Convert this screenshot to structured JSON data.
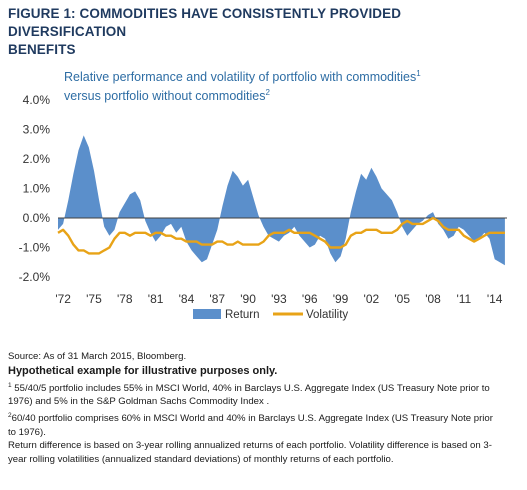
{
  "figure": {
    "title_line1": "FIGURE 1: COMMODITIES HAVE CONSISTENTLY PROVIDED DIVERSIFICATION",
    "title_line2": "BENEFITS",
    "subtitle_line1": "Relative performance and volatility of portfolio with commodities",
    "subtitle_sup1": "1",
    "subtitle_line2": "versus portfolio without commodities",
    "subtitle_sup2": "2"
  },
  "colors": {
    "return_fill": "#5b8fcb",
    "volatility_line": "#e8a317",
    "axis": "#404040",
    "title": "#1f3a5f",
    "subtitle": "#2e6da4"
  },
  "chart_data": {
    "type": "area",
    "title": "Relative performance and volatility of portfolio with commodities versus portfolio without commodities",
    "xlabel": "",
    "ylabel": "",
    "ylim": [
      -2.0,
      4.0
    ],
    "xlim": [
      1971.5,
      2015.2
    ],
    "grid": false,
    "legend_position": "bottom",
    "y_tick_labels": [
      "4.0%",
      "3.0%",
      "2.0%",
      "1.0%",
      "0.0%",
      "-1.0%",
      "-2.0%"
    ],
    "y_tick_values": [
      4,
      3,
      2,
      1,
      0,
      -1,
      -2
    ],
    "x_tick_labels": [
      "'72",
      "'75",
      "'78",
      "'81",
      "'84",
      "'87",
      "'90",
      "'93",
      "'96",
      "'99",
      "'02",
      "'05",
      "'08",
      "'11",
      "'14"
    ],
    "x_tick_values": [
      1972,
      1975,
      1978,
      1981,
      1984,
      1987,
      1990,
      1993,
      1996,
      1999,
      2002,
      2005,
      2008,
      2011,
      2014
    ],
    "series": [
      {
        "name": "Return",
        "type": "area",
        "x": [
          1971.5,
          1972,
          1972.5,
          1973,
          1973.5,
          1974,
          1974.5,
          1975,
          1975.5,
          1976,
          1976.5,
          1977,
          1977.5,
          1978,
          1978.5,
          1979,
          1979.5,
          1980,
          1980.5,
          1981,
          1981.5,
          1982,
          1982.5,
          1983,
          1983.5,
          1984,
          1984.5,
          1985,
          1985.5,
          1986,
          1986.5,
          1987,
          1987.5,
          1988,
          1988.5,
          1989,
          1989.5,
          1990,
          1990.5,
          1991,
          1991.5,
          1992,
          1992.5,
          1993,
          1993.5,
          1994,
          1994.5,
          1995,
          1995.5,
          1996,
          1996.5,
          1997,
          1997.5,
          1998,
          1998.5,
          1999,
          1999.5,
          2000,
          2000.5,
          2001,
          2001.5,
          2002,
          2002.5,
          2003,
          2003.5,
          2004,
          2004.5,
          2005,
          2005.5,
          2006,
          2006.5,
          2007,
          2007.5,
          2008,
          2008.5,
          2009,
          2009.5,
          2010,
          2010.5,
          2011,
          2011.5,
          2012,
          2012.5,
          2013,
          2013.5,
          2014,
          2014.5,
          2015
        ],
        "values": [
          -0.4,
          -0.2,
          0.6,
          1.5,
          2.3,
          2.8,
          2.4,
          1.6,
          0.6,
          -0.3,
          -0.6,
          -0.4,
          0.2,
          0.5,
          0.8,
          0.9,
          0.6,
          -0.1,
          -0.5,
          -0.8,
          -0.6,
          -0.3,
          -0.2,
          -0.5,
          -0.3,
          -0.8,
          -1.1,
          -1.3,
          -1.5,
          -1.4,
          -0.9,
          -0.4,
          0.4,
          1.1,
          1.6,
          1.4,
          1.1,
          1.3,
          0.7,
          0.1,
          -0.3,
          -0.6,
          -0.7,
          -0.8,
          -0.6,
          -0.5,
          -0.3,
          -0.6,
          -0.8,
          -1.0,
          -0.9,
          -0.6,
          -0.7,
          -1.2,
          -1.5,
          -1.3,
          -0.7,
          0.2,
          0.9,
          1.5,
          1.3,
          1.7,
          1.4,
          1.0,
          0.8,
          0.6,
          0.2,
          -0.3,
          -0.6,
          -0.4,
          -0.2,
          -0.1,
          0.1,
          0.2,
          -0.2,
          -0.4,
          -0.7,
          -0.6,
          -0.3,
          -0.4,
          -0.6,
          -0.8,
          -0.7,
          -0.5,
          -0.7,
          -1.4,
          -1.5,
          -1.6
        ]
      },
      {
        "name": "Volatility",
        "type": "line",
        "x": [
          1971.5,
          1972,
          1972.5,
          1973,
          1973.5,
          1974,
          1974.5,
          1975,
          1975.5,
          1976,
          1976.5,
          1977,
          1977.5,
          1978,
          1978.5,
          1979,
          1979.5,
          1980,
          1980.5,
          1981,
          1981.5,
          1982,
          1982.5,
          1983,
          1983.5,
          1984,
          1984.5,
          1985,
          1985.5,
          1986,
          1986.5,
          1987,
          1987.5,
          1988,
          1988.5,
          1989,
          1989.5,
          1990,
          1990.5,
          1991,
          1991.5,
          1992,
          1992.5,
          1993,
          1993.5,
          1994,
          1994.5,
          1995,
          1995.5,
          1996,
          1996.5,
          1997,
          1997.5,
          1998,
          1998.5,
          1999,
          1999.5,
          2000,
          2000.5,
          2001,
          2001.5,
          2002,
          2002.5,
          2003,
          2003.5,
          2004,
          2004.5,
          2005,
          2005.5,
          2006,
          2006.5,
          2007,
          2007.5,
          2008,
          2008.5,
          2009,
          2009.5,
          2010,
          2010.5,
          2011,
          2011.5,
          2012,
          2012.5,
          2013,
          2013.5,
          2014,
          2014.5,
          2015
        ],
        "values": [
          -0.5,
          -0.4,
          -0.6,
          -0.9,
          -1.1,
          -1.1,
          -1.2,
          -1.2,
          -1.2,
          -1.1,
          -1.0,
          -0.7,
          -0.5,
          -0.5,
          -0.6,
          -0.5,
          -0.5,
          -0.5,
          -0.6,
          -0.5,
          -0.5,
          -0.6,
          -0.6,
          -0.7,
          -0.7,
          -0.8,
          -0.8,
          -0.8,
          -0.9,
          -0.9,
          -0.9,
          -0.8,
          -0.8,
          -0.9,
          -0.9,
          -0.8,
          -0.9,
          -0.9,
          -0.9,
          -0.9,
          -0.8,
          -0.6,
          -0.5,
          -0.5,
          -0.5,
          -0.4,
          -0.5,
          -0.5,
          -0.5,
          -0.5,
          -0.6,
          -0.7,
          -0.8,
          -1.0,
          -1.0,
          -1.0,
          -0.9,
          -0.6,
          -0.5,
          -0.5,
          -0.4,
          -0.4,
          -0.4,
          -0.5,
          -0.5,
          -0.5,
          -0.4,
          -0.2,
          -0.1,
          -0.2,
          -0.2,
          -0.2,
          -0.1,
          0.0,
          -0.1,
          -0.3,
          -0.4,
          -0.4,
          -0.4,
          -0.6,
          -0.7,
          -0.8,
          -0.7,
          -0.6,
          -0.5,
          -0.5,
          -0.5,
          -0.5
        ]
      }
    ]
  },
  "legend": {
    "return_label": "Return",
    "volatility_label": "Volatility"
  },
  "notes": {
    "source": "Source: As of 31 March 2015, Bloomberg.",
    "hypothetical": "Hypothetical example for illustrative purposes only.",
    "fn1_marker": "1",
    "fn1_line1": " 55/40/5 portfolio includes 55% in MSCI World, 40% in Barclays U.S. Aggregate Index (US Treasury Note prior to",
    "fn1_line2": "1976) and 5% in the S&P Goldman Sachs Commodity Index .",
    "fn2_marker": "2",
    "fn2_line1": "60/40 portfolio comprises 60% in MSCI World and 40% in Barclays U.S. Aggregate Index (US Treasury Note prior",
    "fn2_line2": "to 1976).",
    "method_line1": "Return difference is based on 3-year rolling annualized returns of each portfolio. Volatility difference is based on 3-",
    "method_line2": "year rolling volatilities (annualized standard deviations) of monthly returns of each portfolio."
  }
}
